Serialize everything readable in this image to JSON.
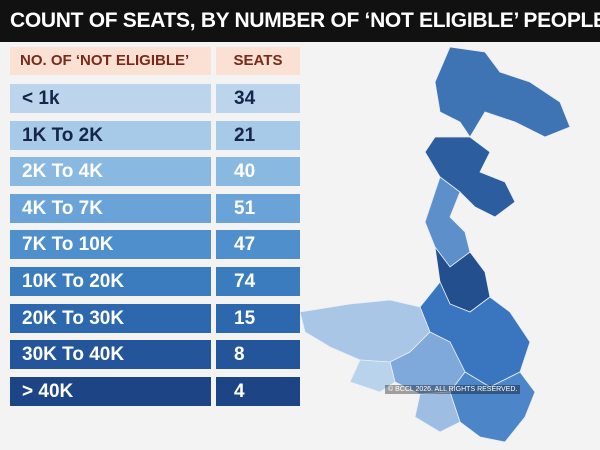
{
  "header": {
    "title": "COUNT OF SEATS, BY NUMBER OF ‘NOT ELIGIBLE’ PEOPLE"
  },
  "table": {
    "columns": [
      "NO. OF ‘NOT ELIGIBLE’",
      "SEATS"
    ],
    "rows": [
      [
        "< 1k",
        "34"
      ],
      [
        "1K To 2K",
        "21"
      ],
      [
        "2K To 4K",
        "40"
      ],
      [
        "4K To 7K",
        "51"
      ],
      [
        "7K To 10K",
        "47"
      ],
      [
        "10K To 20K",
        "74"
      ],
      [
        "20K To 30K",
        "15"
      ],
      [
        "30K To 40K",
        "8"
      ],
      [
        "> 40K",
        "4"
      ]
    ]
  },
  "watermark": "© BCCL 2026. ALL RIGHTS RESERVED."
}
